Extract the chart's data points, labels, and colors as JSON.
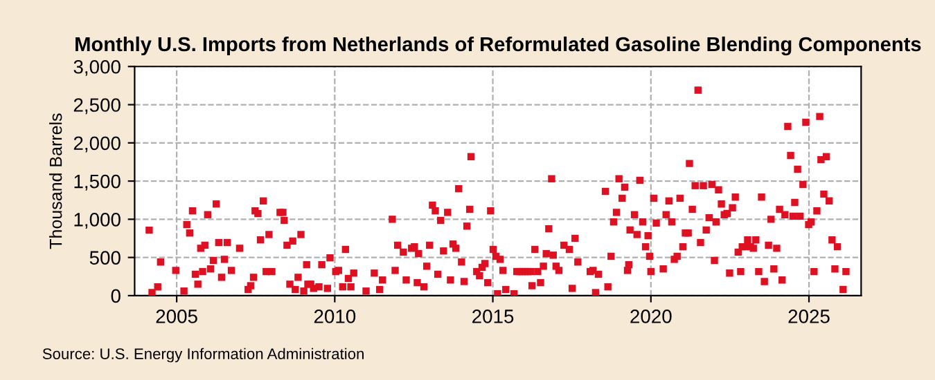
{
  "chart_data": {
    "type": "scatter",
    "title": "Monthly U.S. Imports from Netherlands of Reformulated Gasoline Blending Components",
    "ylabel": "Thousand Barrels",
    "annotations": [
      "Source: U.S. Energy Information Administration"
    ],
    "x": [
      2004.13,
      2004.22,
      2004.4,
      2004.49,
      2004.97,
      2005.23,
      2005.32,
      2005.41,
      2005.5,
      2005.59,
      2005.67,
      2005.76,
      2005.82,
      2005.89,
      2005.98,
      2006.07,
      2006.16,
      2006.25,
      2006.33,
      2006.42,
      2006.51,
      2006.6,
      2006.73,
      2006.99,
      2007.26,
      2007.34,
      2007.43,
      2007.48,
      2007.57,
      2007.65,
      2007.74,
      2007.83,
      2007.92,
      2008.01,
      2008.27,
      2008.36,
      2008.4,
      2008.49,
      2008.58,
      2008.67,
      2008.75,
      2008.84,
      2008.93,
      2009.02,
      2009.11,
      2009.15,
      2009.24,
      2009.33,
      2009.5,
      2009.59,
      2009.77,
      2009.85,
      2010.03,
      2010.12,
      2010.25,
      2010.34,
      2010.43,
      2010.51,
      2010.6,
      2010.99,
      2011.25,
      2011.42,
      2011.51,
      2011.82,
      2011.91,
      2011.99,
      2012.17,
      2012.26,
      2012.43,
      2012.52,
      2012.61,
      2012.65,
      2012.82,
      2012.91,
      2013.0,
      2013.09,
      2013.18,
      2013.26,
      2013.35,
      2013.44,
      2013.57,
      2013.66,
      2013.74,
      2013.83,
      2013.92,
      2014.01,
      2014.09,
      2014.18,
      2014.27,
      2014.31,
      2014.49,
      2014.58,
      2014.66,
      2014.75,
      2014.84,
      2014.93,
      2015.01,
      2015.1,
      2015.15,
      2015.23,
      2015.32,
      2015.41,
      2015.67,
      2015.76,
      2015.85,
      2015.93,
      2016.02,
      2016.11,
      2016.2,
      2016.24,
      2016.33,
      2016.42,
      2016.51,
      2016.6,
      2016.69,
      2016.77,
      2016.86,
      2016.91,
      2017.0,
      2017.09,
      2017.25,
      2017.42,
      2017.51,
      2017.6,
      2017.69,
      2018.08,
      2018.17,
      2018.25,
      2018.34,
      2018.56,
      2018.64,
      2018.74,
      2018.82,
      2018.91,
      2018.99,
      2019.09,
      2019.17,
      2019.26,
      2019.3,
      2019.34,
      2019.48,
      2019.56,
      2019.65,
      2019.74,
      2019.83,
      2019.91,
      2019.96,
      2020.0,
      2020.09,
      2020.17,
      2020.39,
      2020.48,
      2020.57,
      2020.66,
      2020.74,
      2020.83,
      2020.92,
      2021.01,
      2021.09,
      2021.18,
      2021.22,
      2021.31,
      2021.4,
      2021.49,
      2021.57,
      2021.66,
      2021.75,
      2021.84,
      2021.93,
      2022.01,
      2022.06,
      2022.14,
      2022.23,
      2022.32,
      2022.41,
      2022.49,
      2022.58,
      2022.67,
      2022.76,
      2022.84,
      2022.89,
      2022.97,
      2023.06,
      2023.15,
      2023.24,
      2023.32,
      2023.41,
      2023.5,
      2023.59,
      2023.72,
      2023.8,
      2023.89,
      2023.98,
      2024.07,
      2024.15,
      2024.24,
      2024.33,
      2024.42,
      2024.5,
      2024.55,
      2024.64,
      2024.72,
      2024.81,
      2024.9,
      2024.99,
      2025.07,
      2025.16,
      2025.25,
      2025.34,
      2025.38,
      2025.47,
      2025.55,
      2025.64,
      2025.73,
      2025.82,
      2025.9,
      2026.08,
      2026.17
    ],
    "values": [
      857,
      40,
      115,
      440,
      330,
      60,
      930,
      820,
      1110,
      280,
      150,
      620,
      315,
      660,
      1060,
      350,
      460,
      1200,
      695,
      240,
      475,
      695,
      330,
      620,
      80,
      130,
      240,
      1110,
      1075,
      730,
      1240,
      315,
      800,
      315,
      1090,
      1090,
      985,
      660,
      150,
      715,
      80,
      240,
      800,
      60,
      405,
      150,
      150,
      95,
      115,
      405,
      95,
      495,
      315,
      330,
      115,
      605,
      225,
      115,
      295,
      60,
      295,
      80,
      205,
      1000,
      330,
      660,
      570,
      205,
      620,
      640,
      170,
      550,
      115,
      385,
      660,
      1185,
      1110,
      280,
      985,
      585,
      1090,
      205,
      675,
      620,
      1400,
      440,
      185,
      910,
      1130,
      1820,
      315,
      260,
      370,
      420,
      170,
      1110,
      605,
      515,
      25,
      475,
      330,
      80,
      25,
      315,
      315,
      315,
      315,
      315,
      315,
      130,
      605,
      315,
      170,
      385,
      550,
      875,
      1530,
      530,
      385,
      330,
      660,
      605,
      95,
      750,
      440,
      315,
      330,
      40,
      280,
      1365,
      115,
      515,
      965,
      1090,
      1530,
      1275,
      1420,
      330,
      405,
      860,
      1060,
      800,
      1510,
      965,
      640,
      785,
      515,
      315,
      1275,
      950,
      350,
      1060,
      1240,
      965,
      475,
      515,
      1275,
      640,
      820,
      820,
      1730,
      1130,
      1440,
      2690,
      695,
      1440,
      860,
      1020,
      1455,
      460,
      965,
      1385,
      1200,
      1060,
      1075,
      295,
      1150,
      1290,
      570,
      315,
      640,
      640,
      730,
      640,
      620,
      730,
      315,
      1290,
      185,
      660,
      1000,
      350,
      620,
      1130,
      205,
      1060,
      2215,
      1835,
      1040,
      1220,
      1655,
      1040,
      1455,
      2270,
      930,
      965,
      315,
      1110,
      2345,
      1780,
      1330,
      1820,
      1240,
      730,
      350,
      640,
      80,
      315
    ],
    "color": "#dd1122",
    "marker": "square",
    "xlim": [
      2003.67,
      2026.65
    ],
    "xticks": [
      2005,
      2010,
      2015,
      2020,
      2025
    ],
    "ylim": [
      0,
      3000
    ],
    "yticks": [
      0,
      500,
      {
        "value": 1000,
        "label": "1,000"
      },
      {
        "value": 1500,
        "label": "1,500"
      },
      {
        "value": 2000,
        "label": "2,000"
      },
      {
        "value": 2500,
        "label": "2,500"
      },
      {
        "value": 3000,
        "label": "3,000"
      }
    ],
    "grid": true,
    "line_style": "dashed"
  }
}
